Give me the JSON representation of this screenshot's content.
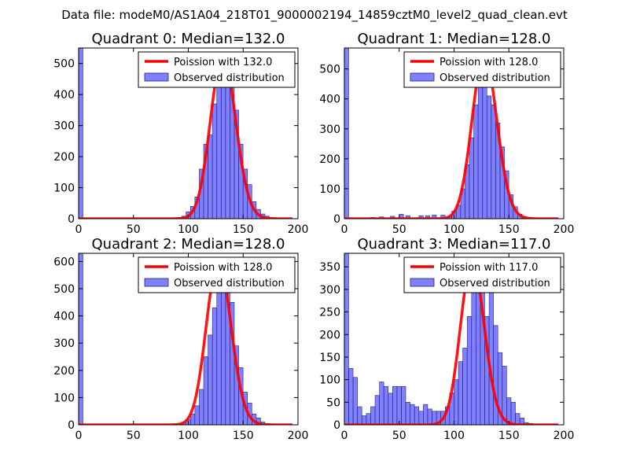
{
  "figure": {
    "suptitle": "Data file: modeM0/AS1A04_218T01_9000002194_14859cztM0_level2_quad_clean.evt"
  },
  "colors": {
    "bar_fill": "#8080ff",
    "bar_edge": "#222288",
    "line": "#ff0000",
    "axes": "#000000"
  },
  "chart_data": [
    {
      "type": "bar",
      "title": "Quadrant 0: Median=132.0",
      "xlabel": "",
      "ylabel": "",
      "xlim": [
        0,
        200
      ],
      "ylim": [
        0,
        550
      ],
      "xticks": [
        "0",
        "50",
        "100",
        "150",
        "200"
      ],
      "yticks": [
        "0",
        "100",
        "200",
        "300",
        "400",
        "500"
      ],
      "ytick_values": [
        0,
        100,
        200,
        300,
        400,
        500
      ],
      "bin_width": 3.9,
      "legend": {
        "placement": "top-right",
        "line_label": "Poission with 132.0",
        "bar_label": "Observed distribution"
      },
      "poisson_mean": 132.0,
      "poisson_peak": 525,
      "bars": [
        [
          0,
          550
        ],
        [
          86,
          3
        ],
        [
          90,
          4
        ],
        [
          94,
          8
        ],
        [
          98,
          22
        ],
        [
          102,
          40
        ],
        [
          106,
          70
        ],
        [
          110,
          160
        ],
        [
          114,
          240
        ],
        [
          118,
          270
        ],
        [
          122,
          370
        ],
        [
          126,
          470
        ],
        [
          130,
          440
        ],
        [
          134,
          520
        ],
        [
          138,
          440
        ],
        [
          142,
          350
        ],
        [
          146,
          240
        ],
        [
          150,
          160
        ],
        [
          154,
          110
        ],
        [
          158,
          55
        ],
        [
          162,
          30
        ],
        [
          166,
          15
        ],
        [
          170,
          8
        ],
        [
          174,
          3
        ],
        [
          178,
          2
        ]
      ]
    },
    {
      "type": "bar",
      "title": "Quadrant 1: Median=128.0",
      "xlabel": "",
      "ylabel": "",
      "xlim": [
        0,
        200
      ],
      "ylim": [
        0,
        570
      ],
      "xticks": [
        "0",
        "50",
        "100",
        "150",
        "200"
      ],
      "yticks": [
        "0",
        "100",
        "200",
        "300",
        "400",
        "500"
      ],
      "ytick_values": [
        0,
        100,
        200,
        300,
        400,
        500
      ],
      "bin_width": 3.9,
      "legend": {
        "placement": "top-right",
        "line_label": "Poission with 128.0",
        "bar_label": "Observed distribution"
      },
      "poisson_mean": 128.0,
      "poisson_peak": 545,
      "bars": [
        [
          0,
          570
        ],
        [
          24,
          4
        ],
        [
          32,
          6
        ],
        [
          42,
          8
        ],
        [
          50,
          15
        ],
        [
          56,
          10
        ],
        [
          68,
          10
        ],
        [
          74,
          10
        ],
        [
          80,
          12
        ],
        [
          88,
          12
        ],
        [
          94,
          8
        ],
        [
          98,
          25
        ],
        [
          102,
          45
        ],
        [
          106,
          100
        ],
        [
          110,
          180
        ],
        [
          114,
          270
        ],
        [
          118,
          380
        ],
        [
          122,
          470
        ],
        [
          126,
          500
        ],
        [
          130,
          410
        ],
        [
          134,
          380
        ],
        [
          138,
          320
        ],
        [
          142,
          240
        ],
        [
          146,
          160
        ],
        [
          150,
          80
        ],
        [
          154,
          40
        ],
        [
          158,
          15
        ],
        [
          162,
          6
        ],
        [
          166,
          4
        ]
      ]
    },
    {
      "type": "bar",
      "title": "Quadrant 2: Median=128.0",
      "xlabel": "",
      "ylabel": "",
      "xlim": [
        0,
        200
      ],
      "ylim": [
        0,
        630
      ],
      "xticks": [
        "0",
        "50",
        "100",
        "150",
        "200"
      ],
      "yticks": [
        "0",
        "100",
        "200",
        "300",
        "400",
        "500",
        "600"
      ],
      "ytick_values": [
        0,
        100,
        200,
        300,
        400,
        500,
        600
      ],
      "bin_width": 3.9,
      "legend": {
        "placement": "top-right",
        "line_label": "Poission with 128.0",
        "bar_label": "Observed distribution"
      },
      "poisson_mean": 128.0,
      "poisson_peak": 600,
      "bars": [
        [
          0,
          630
        ],
        [
          86,
          2
        ],
        [
          90,
          4
        ],
        [
          94,
          8
        ],
        [
          98,
          20
        ],
        [
          102,
          40
        ],
        [
          106,
          70
        ],
        [
          110,
          130
        ],
        [
          114,
          250
        ],
        [
          118,
          330
        ],
        [
          122,
          430
        ],
        [
          126,
          590
        ],
        [
          130,
          500
        ],
        [
          134,
          560
        ],
        [
          138,
          450
        ],
        [
          142,
          290
        ],
        [
          146,
          210
        ],
        [
          150,
          120
        ],
        [
          154,
          80
        ],
        [
          158,
          40
        ],
        [
          162,
          25
        ],
        [
          166,
          10
        ],
        [
          170,
          5
        ],
        [
          174,
          2
        ]
      ]
    },
    {
      "type": "bar",
      "title": "Quadrant 3: Median=117.0",
      "xlabel": "",
      "ylabel": "",
      "xlim": [
        0,
        200
      ],
      "ylim": [
        0,
        380
      ],
      "xticks": [
        "0",
        "50",
        "100",
        "150",
        "200"
      ],
      "yticks": [
        "0",
        "50",
        "100",
        "150",
        "200",
        "250",
        "300",
        "350"
      ],
      "ytick_values": [
        0,
        50,
        100,
        150,
        200,
        250,
        300,
        350
      ],
      "bin_width": 3.9,
      "legend": {
        "placement": "top-right",
        "line_label": "Poission with 117.0",
        "bar_label": "Observed distribution"
      },
      "poisson_mean": 117.0,
      "poisson_peak": 362,
      "bars": [
        [
          0,
          380
        ],
        [
          4,
          125
        ],
        [
          8,
          105
        ],
        [
          12,
          40
        ],
        [
          16,
          20
        ],
        [
          20,
          25
        ],
        [
          24,
          40
        ],
        [
          28,
          65
        ],
        [
          32,
          95
        ],
        [
          36,
          85
        ],
        [
          40,
          70
        ],
        [
          44,
          85
        ],
        [
          48,
          85
        ],
        [
          52,
          85
        ],
        [
          56,
          50
        ],
        [
          60,
          45
        ],
        [
          64,
          40
        ],
        [
          68,
          30
        ],
        [
          72,
          45
        ],
        [
          76,
          35
        ],
        [
          80,
          30
        ],
        [
          84,
          30
        ],
        [
          88,
          30
        ],
        [
          92,
          40
        ],
        [
          96,
          70
        ],
        [
          100,
          100
        ],
        [
          104,
          140
        ],
        [
          108,
          170
        ],
        [
          112,
          240
        ],
        [
          116,
          300
        ],
        [
          120,
          300
        ],
        [
          124,
          350
        ],
        [
          128,
          240
        ],
        [
          132,
          310
        ],
        [
          136,
          220
        ],
        [
          140,
          160
        ],
        [
          144,
          130
        ],
        [
          148,
          60
        ],
        [
          152,
          50
        ],
        [
          156,
          25
        ],
        [
          160,
          15
        ],
        [
          164,
          5
        ],
        [
          168,
          3
        ]
      ]
    }
  ]
}
